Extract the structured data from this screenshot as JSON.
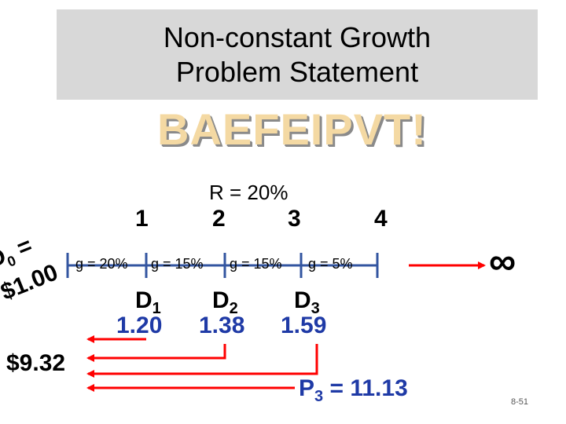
{
  "title": {
    "line1": "Non-constant Growth",
    "line2": "Problem  Statement"
  },
  "subtitle": "BAEFEIPVT!",
  "rate_label": "R = 20%",
  "periods": [
    "1",
    "2",
    "3",
    "4"
  ],
  "d0": {
    "symbol": "D",
    "subscript": "0",
    "eq": " =",
    "value": "$1.00"
  },
  "growth": [
    "g = 20%",
    "g = 15%",
    "g = 15%",
    "g = 5%"
  ],
  "infinity": "∞",
  "dividends": [
    {
      "symbol": "D",
      "subscript": "1",
      "value": "1.20"
    },
    {
      "symbol": "D",
      "subscript": "2",
      "value": "1.38"
    },
    {
      "symbol": "D",
      "subscript": "3",
      "value": "1.59"
    }
  ],
  "present_value": "$9.32",
  "p3": {
    "symbol": "P",
    "subscript": "3",
    "rest": " = 11.13"
  },
  "slide_number": "8-51",
  "colors": {
    "arrow": "#ff0000",
    "timeline": "#3355a0",
    "value_text": "#1f3aa6",
    "title_bg": "#d8d8d8"
  }
}
